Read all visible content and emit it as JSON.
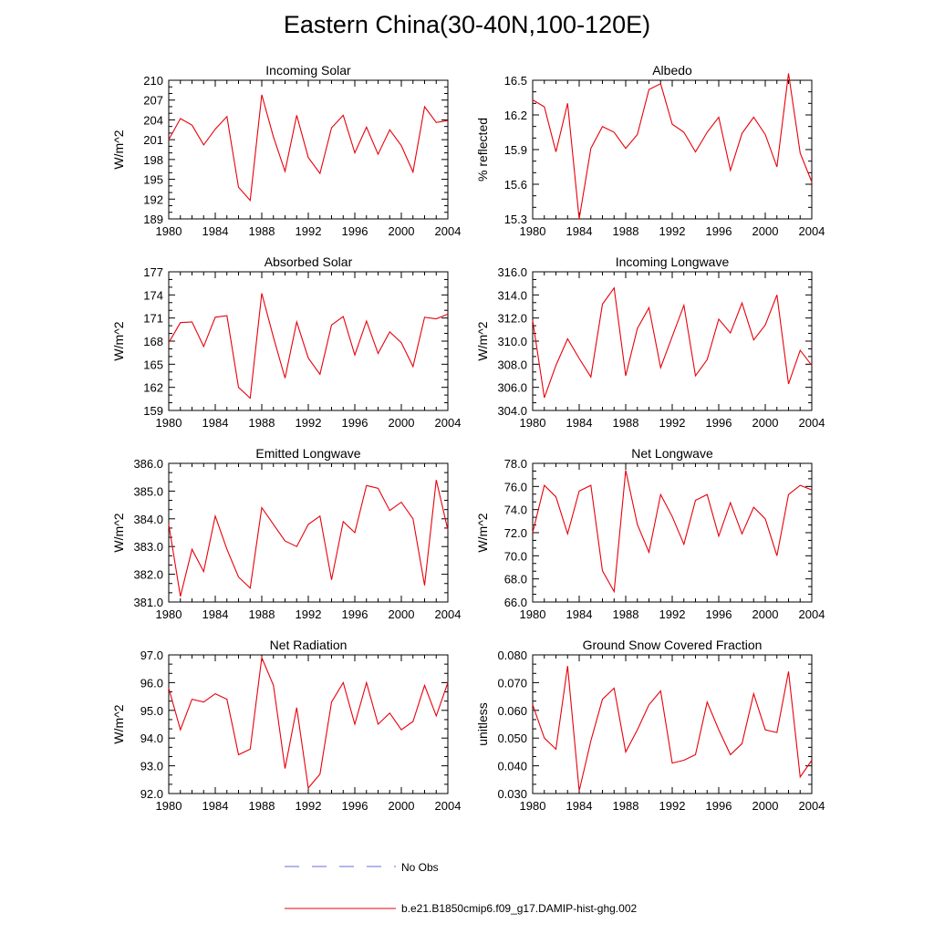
{
  "title": "Eastern China(30-40N,100-120E)",
  "colors": {
    "model": "#e8000b",
    "obs": "#6b6bd6",
    "axis": "#000000"
  },
  "legend": [
    {
      "name": "No Obs",
      "style": "dashed",
      "color": "#6b6bd6"
    },
    {
      "name": "b.e21.B1850cmip6.f09_g17.DAMIP-hist-ghg.002",
      "style": "solid",
      "color": "#e8000b"
    }
  ],
  "chart_data": [
    {
      "type": "line",
      "title": "Incoming Solar",
      "ylabel": "W/m^2",
      "xlim": [
        1980,
        2004
      ],
      "ylim": [
        189,
        210
      ],
      "xticks": [
        1980,
        1984,
        1988,
        1992,
        1996,
        2000,
        2004
      ],
      "yticks": [
        "189",
        "192",
        "195",
        "198",
        "201",
        "204",
        "207",
        "210"
      ],
      "x": [
        1980,
        1981,
        1982,
        1983,
        1984,
        1985,
        1986,
        1987,
        1988,
        1989,
        1990,
        1991,
        1992,
        1993,
        1994,
        1995,
        1996,
        1997,
        1998,
        1999,
        2000,
        2001,
        2002,
        2003,
        2004
      ],
      "values": [
        201.0,
        204.2,
        203.2,
        200.2,
        202.6,
        204.5,
        193.8,
        191.8,
        207.8,
        201.4,
        196.2,
        204.7,
        198.3,
        195.9,
        202.8,
        204.7,
        199.0,
        202.9,
        198.8,
        202.5,
        200.1,
        196.1,
        206.0,
        203.6,
        203.9
      ]
    },
    {
      "type": "line",
      "title": "Albedo",
      "ylabel": "% reflected",
      "xlim": [
        1980,
        2004
      ],
      "ylim": [
        15.3,
        16.5
      ],
      "xticks": [
        1980,
        1984,
        1988,
        1992,
        1996,
        2000,
        2004
      ],
      "yticks": [
        "15.3",
        "15.6",
        "15.9",
        "16.2",
        "16.5"
      ],
      "x": [
        1980,
        1981,
        1982,
        1983,
        1984,
        1985,
        1986,
        1987,
        1988,
        1989,
        1990,
        1991,
        1992,
        1993,
        1994,
        1995,
        1996,
        1997,
        1998,
        1999,
        2000,
        2001,
        2002,
        2003,
        2004
      ],
      "values": [
        16.33,
        16.27,
        15.88,
        16.3,
        15.3,
        15.91,
        16.1,
        16.05,
        15.91,
        16.03,
        16.42,
        16.47,
        16.12,
        16.05,
        15.88,
        16.05,
        16.18,
        15.72,
        16.04,
        16.18,
        16.03,
        15.75,
        16.56,
        15.87,
        15.62
      ]
    },
    {
      "type": "line",
      "title": "Absorbed Solar",
      "ylabel": "W/m^2",
      "xlim": [
        1980,
        2004
      ],
      "ylim": [
        159,
        177
      ],
      "xticks": [
        1980,
        1984,
        1988,
        1992,
        1996,
        2000,
        2004
      ],
      "yticks": [
        "159",
        "162",
        "165",
        "168",
        "171",
        "174",
        "177"
      ],
      "x": [
        1980,
        1981,
        1982,
        1983,
        1984,
        1985,
        1986,
        1987,
        1988,
        1989,
        1990,
        1991,
        1992,
        1993,
        1994,
        1995,
        1996,
        1997,
        1998,
        1999,
        2000,
        2001,
        2002,
        2003,
        2004
      ],
      "values": [
        167.8,
        170.4,
        170.5,
        167.3,
        171.1,
        171.3,
        162.0,
        160.6,
        174.2,
        168.5,
        163.2,
        170.5,
        165.8,
        163.7,
        170.1,
        171.2,
        166.2,
        170.6,
        166.4,
        169.2,
        167.8,
        164.7,
        171.1,
        170.9,
        171.5
      ]
    },
    {
      "type": "line",
      "title": "Incoming Longwave",
      "ylabel": "W/m^2",
      "xlim": [
        1980,
        2004
      ],
      "ylim": [
        304.0,
        316.0
      ],
      "xticks": [
        1980,
        1984,
        1988,
        1992,
        1996,
        2000,
        2004
      ],
      "yticks": [
        "304.0",
        "306.0",
        "308.0",
        "310.0",
        "312.0",
        "314.0",
        "316.0"
      ],
      "x": [
        1980,
        1981,
        1982,
        1983,
        1984,
        1985,
        1986,
        1987,
        1988,
        1989,
        1990,
        1991,
        1992,
        1993,
        1994,
        1995,
        1996,
        1997,
        1998,
        1999,
        2000,
        2001,
        2002,
        2003,
        2004
      ],
      "values": [
        311.8,
        305.1,
        307.9,
        310.2,
        308.5,
        306.9,
        313.2,
        314.6,
        307.0,
        311.1,
        312.9,
        307.7,
        310.4,
        313.1,
        307.0,
        308.4,
        311.9,
        310.7,
        313.3,
        310.1,
        311.4,
        314.0,
        306.3,
        309.2,
        307.9
      ]
    },
    {
      "type": "line",
      "title": "Emitted Longwave",
      "ylabel": "W/m^2",
      "xlim": [
        1980,
        2004
      ],
      "ylim": [
        381.0,
        386.0
      ],
      "xticks": [
        1980,
        1984,
        1988,
        1992,
        1996,
        2000,
        2004
      ],
      "yticks": [
        "381.0",
        "382.0",
        "383.0",
        "384.0",
        "385.0",
        "386.0"
      ],
      "x": [
        1980,
        1981,
        1982,
        1983,
        1984,
        1985,
        1986,
        1987,
        1988,
        1989,
        1990,
        1991,
        1992,
        1993,
        1994,
        1995,
        1996,
        1997,
        1998,
        1999,
        2000,
        2001,
        2002,
        2003,
        2004
      ],
      "values": [
        383.8,
        381.2,
        382.9,
        382.1,
        384.1,
        382.9,
        381.9,
        381.5,
        384.4,
        383.8,
        383.2,
        383.0,
        383.8,
        384.1,
        381.8,
        383.9,
        383.5,
        385.2,
        385.1,
        384.3,
        384.6,
        384.0,
        381.6,
        385.4,
        383.6
      ]
    },
    {
      "type": "line",
      "title": "Net Longwave",
      "ylabel": "W/m^2",
      "xlim": [
        1980,
        2004
      ],
      "ylim": [
        66.0,
        78.0
      ],
      "xticks": [
        1980,
        1984,
        1988,
        1992,
        1996,
        2000,
        2004
      ],
      "yticks": [
        "66.0",
        "68.0",
        "70.0",
        "72.0",
        "74.0",
        "76.0",
        "78.0"
      ],
      "x": [
        1980,
        1981,
        1982,
        1983,
        1984,
        1985,
        1986,
        1987,
        1988,
        1989,
        1990,
        1991,
        1992,
        1993,
        1994,
        1995,
        1996,
        1997,
        1998,
        1999,
        2000,
        2001,
        2002,
        2003,
        2004
      ],
      "values": [
        72.0,
        76.1,
        75.1,
        71.9,
        75.6,
        76.1,
        68.7,
        66.9,
        77.4,
        72.7,
        70.3,
        75.3,
        73.4,
        71.0,
        74.8,
        75.3,
        71.7,
        74.6,
        71.9,
        74.2,
        73.2,
        70.0,
        75.3,
        76.1,
        75.7
      ]
    },
    {
      "type": "line",
      "title": "Net Radiation",
      "ylabel": "W/m^2",
      "xlim": [
        1980,
        2004
      ],
      "ylim": [
        92.0,
        97.0
      ],
      "xticks": [
        1980,
        1984,
        1988,
        1992,
        1996,
        2000,
        2004
      ],
      "yticks": [
        "92.0",
        "93.0",
        "94.0",
        "95.0",
        "96.0",
        "97.0"
      ],
      "x": [
        1980,
        1981,
        1982,
        1983,
        1984,
        1985,
        1986,
        1987,
        1988,
        1989,
        1990,
        1991,
        1992,
        1993,
        1994,
        1995,
        1996,
        1997,
        1998,
        1999,
        2000,
        2001,
        2002,
        2003,
        2004
      ],
      "values": [
        95.8,
        94.3,
        95.4,
        95.3,
        95.6,
        95.4,
        93.4,
        93.6,
        96.9,
        95.9,
        92.9,
        95.1,
        92.2,
        92.7,
        95.3,
        96.0,
        94.5,
        96.0,
        94.5,
        94.9,
        94.3,
        94.6,
        95.9,
        94.8,
        96.0
      ]
    },
    {
      "type": "line",
      "title": "Ground Snow Covered Fraction",
      "ylabel": "unitless",
      "xlim": [
        1980,
        2004
      ],
      "ylim": [
        0.03,
        0.08
      ],
      "xticks": [
        1980,
        1984,
        1988,
        1992,
        1996,
        2000,
        2004
      ],
      "yticks": [
        "0.030",
        "0.040",
        "0.050",
        "0.060",
        "0.070",
        "0.080"
      ],
      "x": [
        1980,
        1981,
        1982,
        1983,
        1984,
        1985,
        1986,
        1987,
        1988,
        1989,
        1990,
        1991,
        1992,
        1993,
        1994,
        1995,
        1996,
        1997,
        1998,
        1999,
        2000,
        2001,
        2002,
        2003,
        2004
      ],
      "values": [
        0.062,
        0.05,
        0.046,
        0.076,
        0.031,
        0.049,
        0.064,
        0.068,
        0.045,
        0.053,
        0.062,
        0.067,
        0.041,
        0.042,
        0.044,
        0.063,
        0.053,
        0.044,
        0.048,
        0.066,
        0.053,
        0.052,
        0.074,
        0.036,
        0.042
      ]
    }
  ]
}
